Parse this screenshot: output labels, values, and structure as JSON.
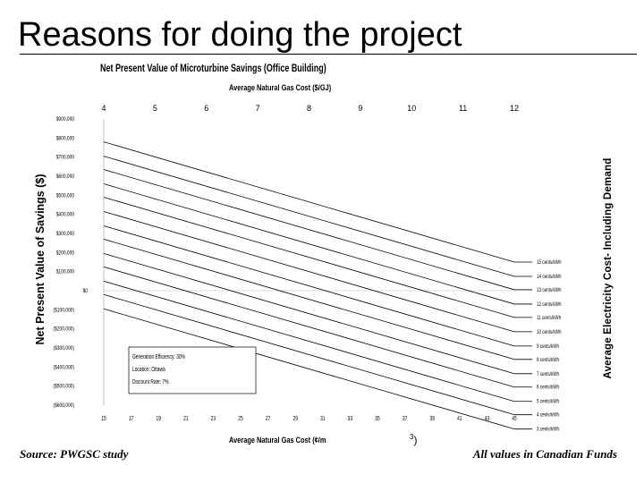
{
  "slide": {
    "title": "Reasons for doing the project",
    "source": "Source: PWGSC study",
    "funds_note": "All values in Canadian Funds"
  },
  "chart_data": {
    "type": "line",
    "title": "Net Present Value of Microturbine Savings (Office Building)",
    "x_top_label": "Average Natural Gas Cost ($/GJ)",
    "x_top_ticks": [
      "4",
      "5",
      "6",
      "7",
      "8",
      "9",
      "10",
      "11",
      "12"
    ],
    "x_top_range": [
      4,
      12
    ],
    "x_bottom_label": "Average Natural Gas Cost (¢/m",
    "x_bottom_label_tail": "3",
    "x_bottom_label_close": ")",
    "x_bottom_ticks": [
      "15",
      "17",
      "19",
      "21",
      "23",
      "25",
      "27",
      "29",
      "31",
      "33",
      "35",
      "37",
      "39",
      "41",
      "43",
      "45"
    ],
    "x_bottom_range": [
      15,
      45
    ],
    "ylabel": "Net Present Value of Savings ($)",
    "y_ticks": [
      "$900,000",
      "$800,000",
      "$700,000",
      "$600,000",
      "$500,000",
      "$400,000",
      "$300,000",
      "$200,000",
      "$100,000",
      "$0",
      "($100,000)",
      "($200,000)",
      "($300,000)",
      "($400,000)",
      "($500,000)",
      "($600,000)"
    ],
    "ylim": [
      -600000,
      900000
    ],
    "right_label": "Average Electricity Cost- Including Demand",
    "legend_position": "right, at line ends",
    "note_box": {
      "lines": [
        "Generation Efficiency: 30%",
        "Location: Ottawa",
        "Discount Rate: 7%"
      ]
    },
    "series": [
      {
        "name": "15 cents/kWh",
        "values": [
          780000,
          150000
        ]
      },
      {
        "name": "14 cents/kWh",
        "values": [
          705000,
          75000
        ]
      },
      {
        "name": "13 cents/kWh",
        "values": [
          635000,
          5000
        ]
      },
      {
        "name": "12 cents/kWh",
        "values": [
          560000,
          -70000
        ]
      },
      {
        "name": "11 cents/kWh",
        "values": [
          490000,
          -140000
        ]
      },
      {
        "name": "10 cents/kWh",
        "values": [
          415000,
          -215000
        ]
      },
      {
        "name": "9 cents/kWh",
        "values": [
          340000,
          -290000
        ]
      },
      {
        "name": "8 cents/kWh",
        "values": [
          270000,
          -360000
        ]
      },
      {
        "name": "7 cents/kWh",
        "values": [
          195000,
          -435000
        ]
      },
      {
        "name": "6 cents/kWh",
        "values": [
          125000,
          -505000
        ]
      },
      {
        "name": "5 cents/kWh",
        "values": [
          50000,
          -580000
        ]
      },
      {
        "name": "4 cents/kWh",
        "values": [
          -20000,
          -650000
        ]
      },
      {
        "name": "3 cents/kWh",
        "values": [
          -95000,
          -725000
        ]
      }
    ],
    "series_x": [
      15,
      45
    ],
    "grid": false
  }
}
